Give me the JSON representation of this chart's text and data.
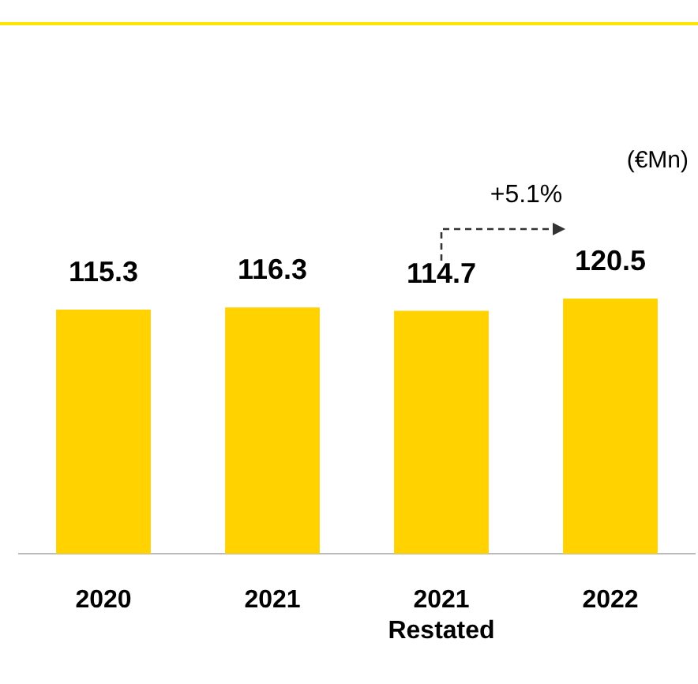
{
  "chart_data": {
    "type": "bar",
    "categories": [
      "2020",
      "2021",
      "2021\nRestated",
      "2022"
    ],
    "values": [
      115.3,
      116.3,
      114.7,
      120.5
    ],
    "color": "#ffd200",
    "data_labels": true,
    "grid": false,
    "legend": false,
    "annotations": [
      "(€Mn)",
      "+5.1%"
    ]
  }
}
